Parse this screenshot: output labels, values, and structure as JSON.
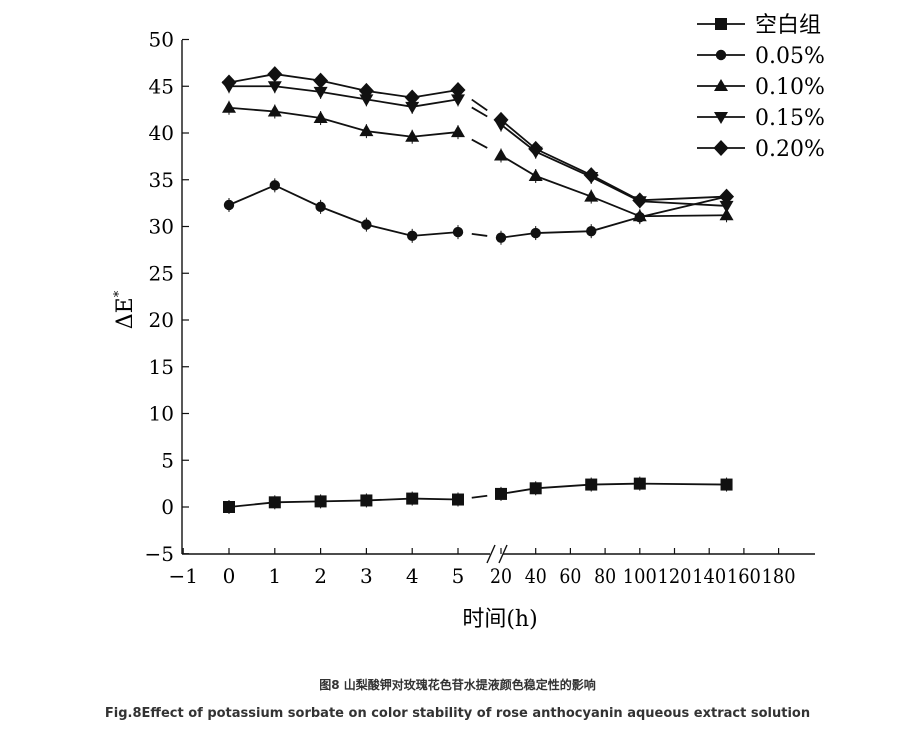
{
  "chart_data": {
    "type": "line",
    "ylabel": "ΔE",
    "ylabel_superscript": "*",
    "xlabel": "时间(h)",
    "ylim": [
      -5,
      50
    ],
    "y_ticks": [
      "50",
      "45",
      "40",
      "35",
      "30",
      "25",
      "20",
      "15",
      "10",
      "5",
      "0",
      "−5"
    ],
    "x_axis": "broken",
    "x_ticks_left": [
      "−1",
      "0",
      "1",
      "2",
      "3",
      "4",
      "5"
    ],
    "x_ticks_right": [
      "20",
      "40",
      "60",
      "80",
      "100",
      "120",
      "140",
      "160",
      "180"
    ],
    "legend_position": "top-right",
    "series": [
      {
        "name": "空白组",
        "marker": "square",
        "left": [
          [
            0,
            0.0
          ],
          [
            1,
            0.5
          ],
          [
            2,
            0.6
          ],
          [
            3,
            0.7
          ],
          [
            4,
            0.9
          ],
          [
            5,
            0.8
          ]
        ],
        "right": [
          [
            20,
            1.4
          ],
          [
            40,
            2.0
          ],
          [
            72,
            2.4
          ],
          [
            100,
            2.5
          ],
          [
            150,
            2.4
          ]
        ]
      },
      {
        "name": "0.05%",
        "marker": "circle",
        "left": [
          [
            0,
            32.3
          ],
          [
            1,
            34.4
          ],
          [
            2,
            32.1
          ],
          [
            3,
            30.2
          ],
          [
            4,
            29.0
          ],
          [
            5,
            29.4
          ]
        ],
        "right": [
          [
            20,
            28.8
          ],
          [
            40,
            29.3
          ],
          [
            72,
            29.5
          ],
          [
            100,
            31.0
          ],
          [
            150,
            33.2
          ]
        ]
      },
      {
        "name": "0.10%",
        "marker": "triangle-up",
        "left": [
          [
            0,
            42.7
          ],
          [
            1,
            42.3
          ],
          [
            2,
            41.6
          ],
          [
            3,
            40.2
          ],
          [
            4,
            39.6
          ],
          [
            5,
            40.1
          ]
        ],
        "right": [
          [
            20,
            37.6
          ],
          [
            40,
            35.4
          ],
          [
            72,
            33.2
          ],
          [
            100,
            31.1
          ],
          [
            150,
            31.2
          ]
        ]
      },
      {
        "name": "0.15%",
        "marker": "triangle-down",
        "left": [
          [
            0,
            45.0
          ],
          [
            1,
            45.0
          ],
          [
            2,
            44.4
          ],
          [
            3,
            43.6
          ],
          [
            4,
            42.8
          ],
          [
            5,
            43.6
          ]
        ],
        "right": [
          [
            20,
            40.9
          ],
          [
            40,
            38.0
          ],
          [
            72,
            35.3
          ],
          [
            100,
            32.7
          ],
          [
            150,
            32.2
          ]
        ]
      },
      {
        "name": "0.20%",
        "marker": "diamond",
        "left": [
          [
            0,
            45.4
          ],
          [
            1,
            46.3
          ],
          [
            2,
            45.6
          ],
          [
            3,
            44.5
          ],
          [
            4,
            43.8
          ],
          [
            5,
            44.6
          ]
        ],
        "right": [
          [
            20,
            41.4
          ],
          [
            40,
            38.3
          ],
          [
            72,
            35.5
          ],
          [
            100,
            32.8
          ],
          [
            150,
            33.2
          ]
        ]
      }
    ]
  },
  "caption_cn": "图8 山梨酸钾对玫瑰花色苷水提液颜色稳定性的影响",
  "caption_en": "Fig.8Effect of potassium sorbate on color stability of rose anthocyanin aqueous extract solution"
}
